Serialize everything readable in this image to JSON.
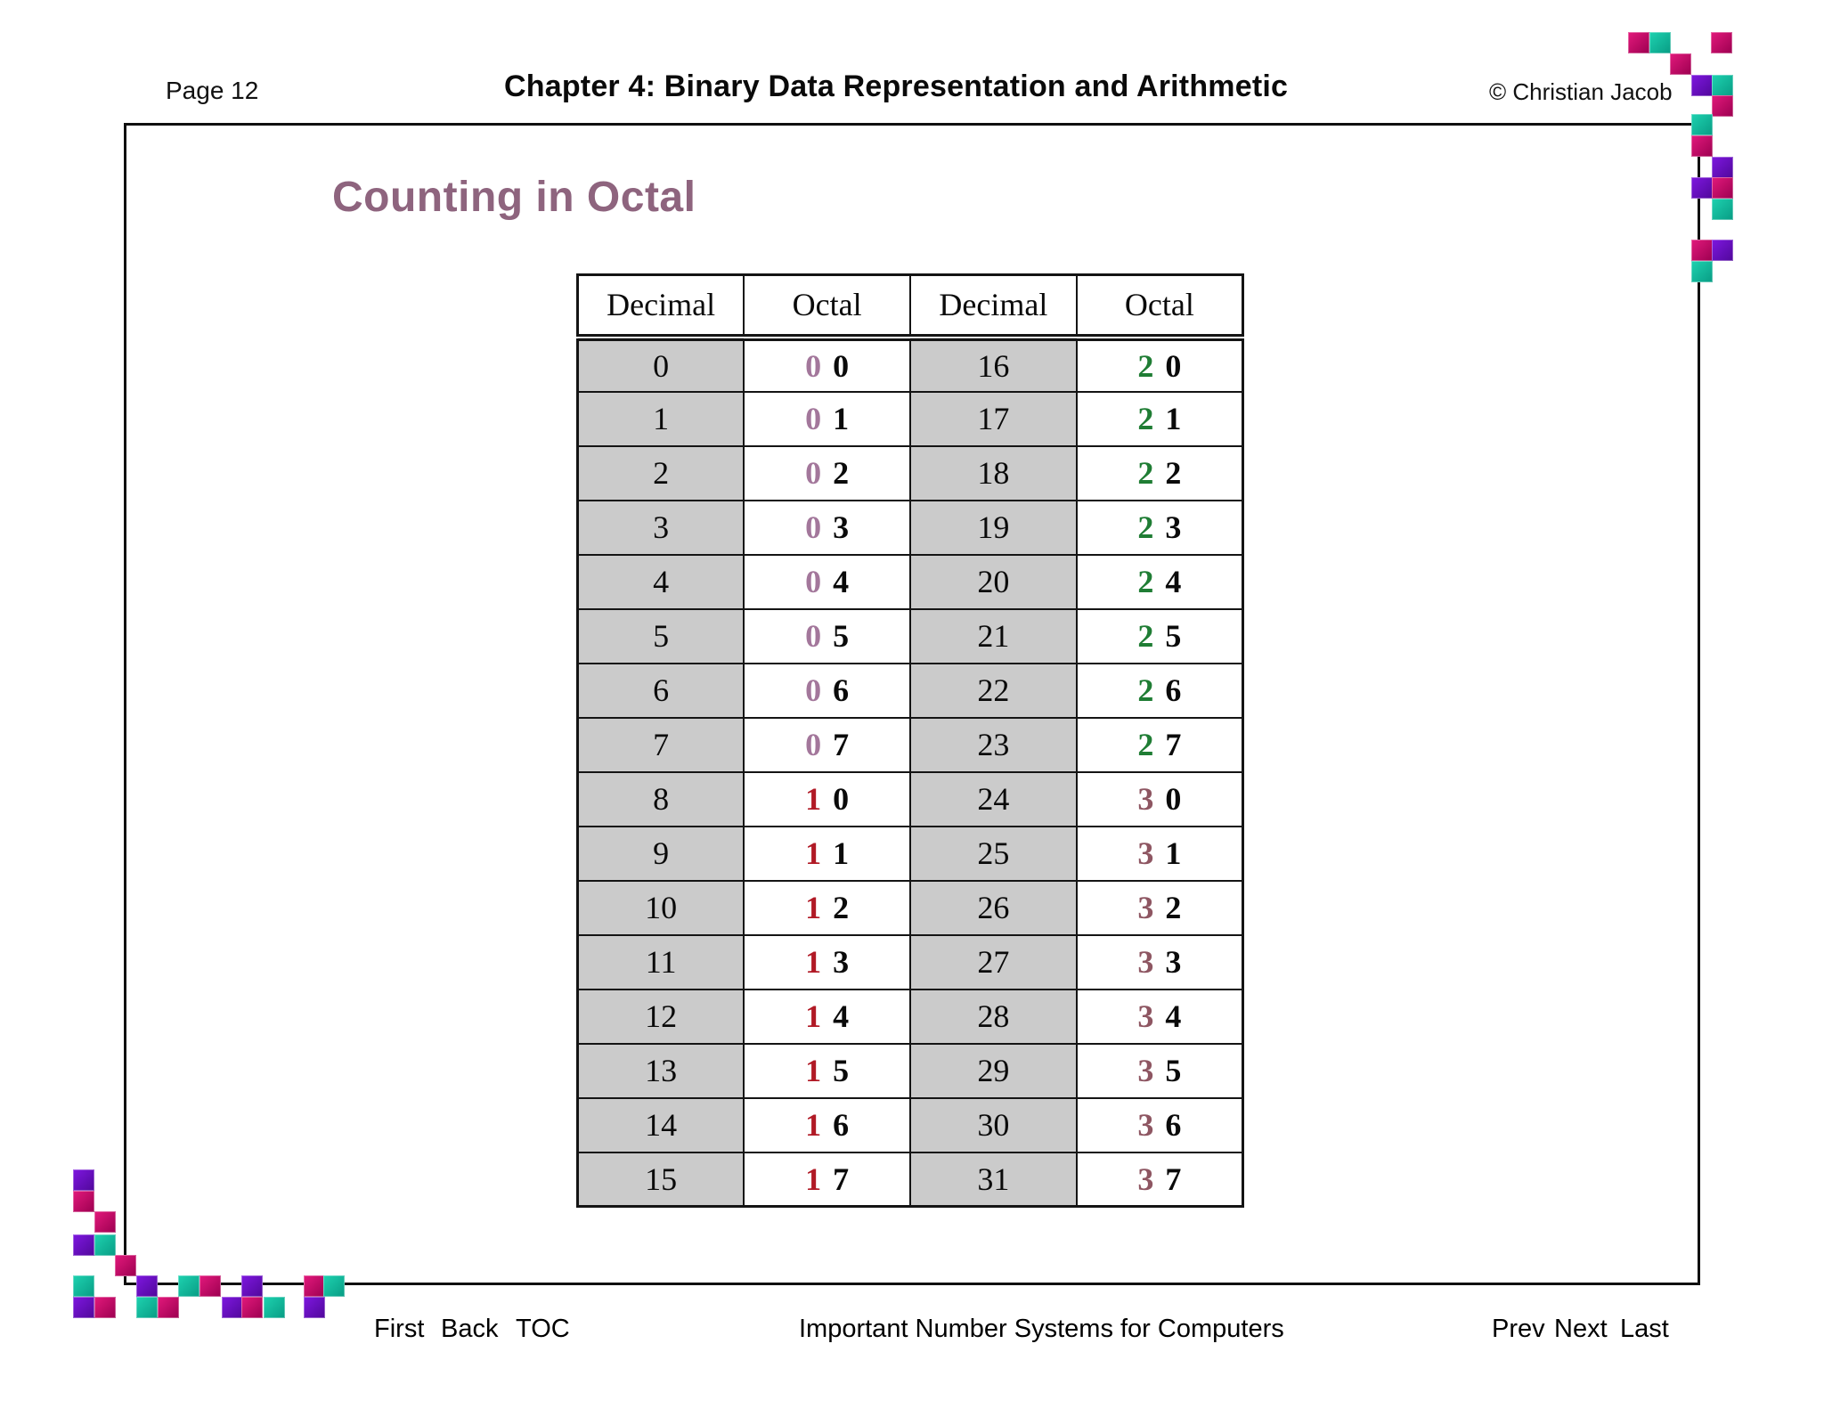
{
  "header": {
    "page_label": "Page 12",
    "title": "Chapter 4: Binary Data Representation and Arithmetic",
    "copyright": "© Christian Jacob"
  },
  "slide": {
    "title": "Counting in Octal"
  },
  "table": {
    "headers": [
      "Decimal",
      "Octal",
      "Decimal",
      "Octal"
    ],
    "rows": [
      {
        "dec1": "0",
        "oct1": [
          "0",
          "0"
        ],
        "dec2": "16",
        "oct2": [
          "2",
          "0"
        ]
      },
      {
        "dec1": "1",
        "oct1": [
          "0",
          "1"
        ],
        "dec2": "17",
        "oct2": [
          "2",
          "1"
        ]
      },
      {
        "dec1": "2",
        "oct1": [
          "0",
          "2"
        ],
        "dec2": "18",
        "oct2": [
          "2",
          "2"
        ]
      },
      {
        "dec1": "3",
        "oct1": [
          "0",
          "3"
        ],
        "dec2": "19",
        "oct2": [
          "2",
          "3"
        ]
      },
      {
        "dec1": "4",
        "oct1": [
          "0",
          "4"
        ],
        "dec2": "20",
        "oct2": [
          "2",
          "4"
        ]
      },
      {
        "dec1": "5",
        "oct1": [
          "0",
          "5"
        ],
        "dec2": "21",
        "oct2": [
          "2",
          "5"
        ]
      },
      {
        "dec1": "6",
        "oct1": [
          "0",
          "6"
        ],
        "dec2": "22",
        "oct2": [
          "2",
          "6"
        ]
      },
      {
        "dec1": "7",
        "oct1": [
          "0",
          "7"
        ],
        "dec2": "23",
        "oct2": [
          "2",
          "7"
        ]
      },
      {
        "dec1": "8",
        "oct1": [
          "1",
          "0"
        ],
        "dec2": "24",
        "oct2": [
          "3",
          "0"
        ]
      },
      {
        "dec1": "9",
        "oct1": [
          "1",
          "1"
        ],
        "dec2": "25",
        "oct2": [
          "3",
          "1"
        ]
      },
      {
        "dec1": "10",
        "oct1": [
          "1",
          "2"
        ],
        "dec2": "26",
        "oct2": [
          "3",
          "2"
        ]
      },
      {
        "dec1": "11",
        "oct1": [
          "1",
          "3"
        ],
        "dec2": "27",
        "oct2": [
          "3",
          "3"
        ]
      },
      {
        "dec1": "12",
        "oct1": [
          "1",
          "4"
        ],
        "dec2": "28",
        "oct2": [
          "3",
          "4"
        ]
      },
      {
        "dec1": "13",
        "oct1": [
          "1",
          "5"
        ],
        "dec2": "29",
        "oct2": [
          "3",
          "5"
        ]
      },
      {
        "dec1": "14",
        "oct1": [
          "1",
          "6"
        ],
        "dec2": "30",
        "oct2": [
          "3",
          "6"
        ]
      },
      {
        "dec1": "15",
        "oct1": [
          "1",
          "7"
        ],
        "dec2": "31",
        "oct2": [
          "3",
          "7"
        ]
      }
    ]
  },
  "footer": {
    "left_links": [
      "First",
      "Back",
      "TOC"
    ],
    "center": "Important Number Systems for Computers",
    "right_links": [
      "Prev",
      "Next",
      "Last"
    ]
  },
  "colors": {
    "slide_title": "#8E647E",
    "table_grid": "#141414",
    "decimal_cell_bg": "#CBCBCB",
    "octal_prefix": {
      "0": "#A3779B",
      "1": "#B11A26",
      "2": "#1F7D34",
      "3": "#8E5662"
    },
    "squares": {
      "magenta": {
        "light": "#E3197C",
        "dark": "#9C0050"
      },
      "teal": {
        "light": "#1ED2B0",
        "dark": "#089C84"
      },
      "purple": {
        "light": "#7E17E0",
        "dark": "#50089A"
      }
    }
  }
}
